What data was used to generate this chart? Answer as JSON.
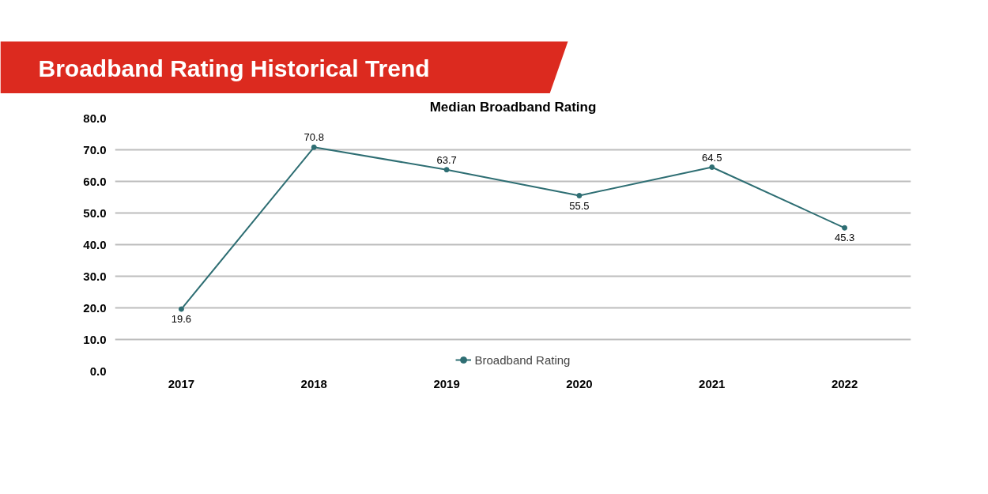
{
  "chart_data": {
    "type": "line",
    "title": "Broadband Rating Historical Trend",
    "subtitle": "Median Broadband Rating",
    "categories": [
      "2017",
      "2018",
      "2019",
      "2020",
      "2021",
      "2022"
    ],
    "series": [
      {
        "name": "Broadband Rating",
        "color": "#2e6e73",
        "values": [
          19.6,
          70.8,
          63.7,
          55.5,
          64.5,
          45.3
        ]
      }
    ],
    "ylim": [
      0,
      80
    ],
    "yticks": [
      {
        "value": 0,
        "label": "0.0"
      },
      {
        "value": 10,
        "label": "10.0"
      },
      {
        "value": 20,
        "label": "20.0"
      },
      {
        "value": 30,
        "label": "30.0"
      },
      {
        "value": 40,
        "label": "40.0"
      },
      {
        "value": 50,
        "label": "50.0"
      },
      {
        "value": 60,
        "label": "60.0"
      },
      {
        "value": 70,
        "label": "70.0"
      },
      {
        "value": 80,
        "label": "80.0"
      }
    ],
    "grid": "y",
    "legend": "bottom",
    "marker": "circle",
    "line_style": "solid",
    "data_labels": true
  }
}
